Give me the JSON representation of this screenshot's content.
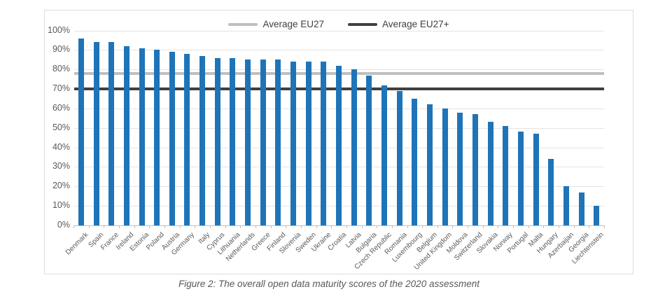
{
  "figure_caption": "Figure 2: The overall open data maturity scores of the 2020 assessment",
  "chart_data": {
    "type": "bar",
    "title": "",
    "xlabel": "",
    "ylabel": "",
    "categories": [
      "Denmark",
      "Spain",
      "France",
      "Ireland",
      "Estonia",
      "Poland",
      "Austria",
      "Germany",
      "Italy",
      "Cyprus",
      "Lithuania",
      "Netherlands",
      "Greece",
      "Finland",
      "Slovenia",
      "Sweden",
      "Ukraine",
      "Croatia",
      "Latvia",
      "Bulgaria",
      "Czech Republic",
      "Romania",
      "Luxembourg",
      "Belgium",
      "United Kingdom",
      "Moldova",
      "Switzerland",
      "Slovakia",
      "Norway",
      "Portugal",
      "Malta",
      "Hungary",
      "Azerbaijan",
      "Georgia",
      "Liechtenstein"
    ],
    "values": [
      96,
      94,
      94,
      92,
      91,
      90,
      89,
      88,
      87,
      86,
      86,
      85,
      85,
      85,
      84,
      84,
      84,
      82,
      80,
      77,
      72,
      69,
      65,
      62,
      60,
      58,
      57,
      53,
      51,
      48,
      47,
      34,
      20,
      17,
      10
    ],
    "ylim": [
      0,
      100
    ],
    "ytick_step": 10,
    "y_tick_labels": [
      "0%",
      "10%",
      "20%",
      "30%",
      "40%",
      "50%",
      "60%",
      "70%",
      "80%",
      "90%",
      "100%"
    ],
    "grid": true,
    "legend_position": "top-center",
    "bar_color": "#1f74b8",
    "reference_lines": [
      {
        "label": "Average EU27",
        "value": 78,
        "color": "#bfbfbf"
      },
      {
        "label": "Average EU27+",
        "value": 70,
        "color": "#404040"
      }
    ]
  }
}
